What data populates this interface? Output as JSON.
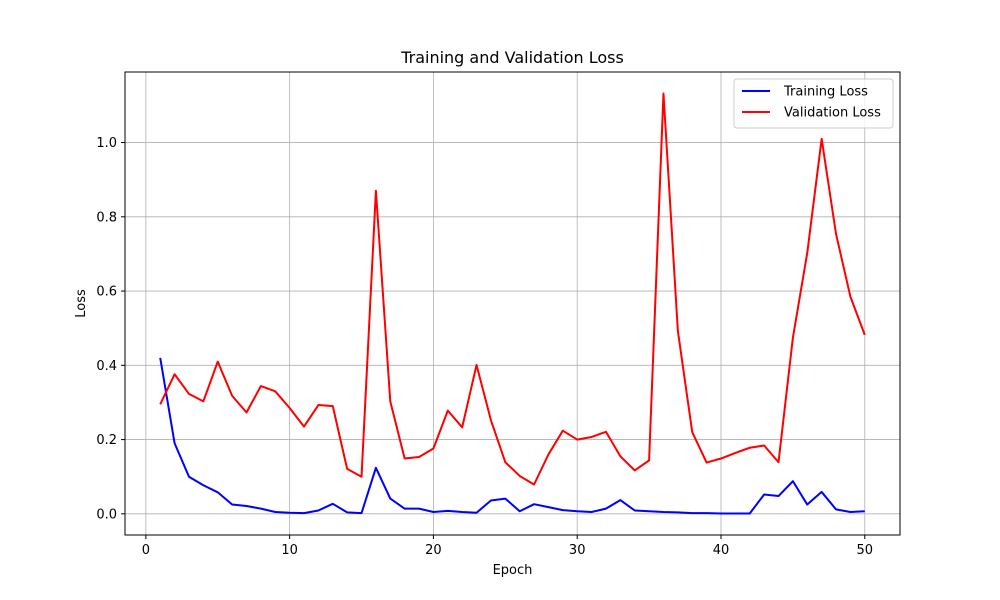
{
  "chart_data": {
    "type": "line",
    "title": "Training and Validation Loss",
    "xlabel": "Epoch",
    "ylabel": "Loss",
    "xlim": [
      -1.45,
      52.45
    ],
    "ylim": [
      -0.057,
      1.19
    ],
    "xticks": [
      0,
      10,
      20,
      30,
      40,
      50
    ],
    "yticks": [
      0.0,
      0.2,
      0.4,
      0.6,
      0.8,
      1.0
    ],
    "ytick_labels": [
      "0.0",
      "0.2",
      "0.4",
      "0.6",
      "0.8",
      "1.0"
    ],
    "grid": true,
    "legend_position": "top-right",
    "x": [
      1,
      2,
      3,
      4,
      5,
      6,
      7,
      8,
      9,
      10,
      11,
      12,
      13,
      14,
      15,
      16,
      17,
      18,
      19,
      20,
      21,
      22,
      23,
      24,
      25,
      26,
      27,
      28,
      29,
      30,
      31,
      32,
      33,
      34,
      35,
      36,
      37,
      38,
      39,
      40,
      41,
      42,
      43,
      44,
      45,
      46,
      47,
      48,
      49,
      50
    ],
    "series": [
      {
        "name": "Training Loss",
        "color": "#0000ff",
        "values": [
          0.42,
          0.19,
          0.1,
          0.077,
          0.058,
          0.025,
          0.021,
          0.014,
          0.005,
          0.003,
          0.002,
          0.009,
          0.027,
          0.004,
          0.002,
          0.124,
          0.041,
          0.014,
          0.014,
          0.005,
          0.008,
          0.005,
          0.003,
          0.036,
          0.041,
          0.007,
          0.026,
          0.018,
          0.01,
          0.007,
          0.005,
          0.014,
          0.037,
          0.009,
          0.007,
          0.005,
          0.004,
          0.002,
          0.002,
          0.001,
          0.001,
          0.001,
          0.052,
          0.048,
          0.088,
          0.025,
          0.059,
          0.012,
          0.005,
          0.007
        ]
      },
      {
        "name": "Validation Loss",
        "color": "#ff0000",
        "values": [
          0.295,
          0.376,
          0.323,
          0.303,
          0.41,
          0.318,
          0.273,
          0.344,
          0.33,
          0.285,
          0.235,
          0.293,
          0.29,
          0.121,
          0.1,
          0.87,
          0.303,
          0.149,
          0.153,
          0.176,
          0.278,
          0.233,
          0.401,
          0.252,
          0.139,
          0.102,
          0.079,
          0.16,
          0.224,
          0.2,
          0.207,
          0.221,
          0.155,
          0.117,
          0.144,
          1.132,
          0.493,
          0.22,
          0.138,
          0.149,
          0.164,
          0.178,
          0.184,
          0.139,
          0.474,
          0.703,
          1.01,
          0.754,
          0.585,
          0.482
        ]
      }
    ]
  }
}
